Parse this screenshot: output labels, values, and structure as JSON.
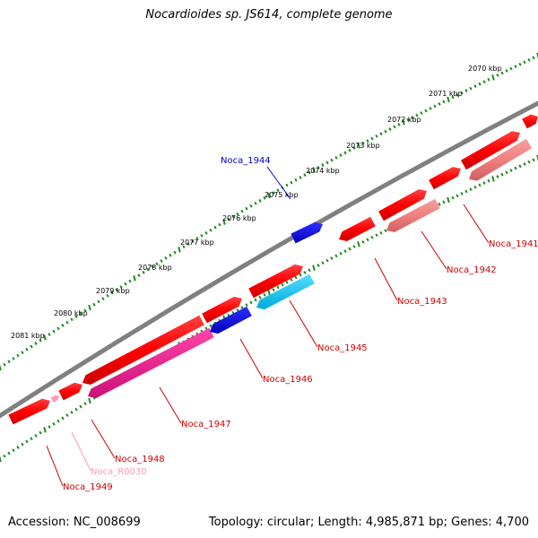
{
  "title": "Nocardioides sp. JS614, complete genome",
  "footer": {
    "accession": "Accession: NC_008699",
    "summary": "Topology: circular; Length: 4,985,871 bp; Genes: 4,700"
  },
  "colors": {
    "forward_gene": "#ff0000",
    "reverse_gene": "#f08080",
    "forward_rna": "#0000dd",
    "reverse_rna": "#00bbee",
    "pseudo": "#ee1188",
    "tick": "#228822",
    "backbone": "#808080"
  },
  "scale_labels": [
    "2070 kbp",
    "2071 kbp",
    "2072 kbp",
    "2073 kbp",
    "2074 kbp",
    "2075 kbp",
    "2076 kbp",
    "2077 kbp",
    "2078 kbp",
    "2079 kbp",
    "2080 kbp",
    "2081 kbp"
  ],
  "genes": [
    {
      "label": "Noca_1941",
      "color": "#cc0000"
    },
    {
      "label": "Noca_1942",
      "color": "#cc0000"
    },
    {
      "label": "Noca_1943",
      "color": "#cc0000"
    },
    {
      "label": "Noca_1944",
      "color": "#0000cc"
    },
    {
      "label": "Noca_1945",
      "color": "#cc0000"
    },
    {
      "label": "Noca_1946",
      "color": "#cc0000"
    },
    {
      "label": "Noca_1947",
      "color": "#cc0000"
    },
    {
      "label": "Noca_1948",
      "color": "#cc0000"
    },
    {
      "label": "Noca_R0030",
      "color": "#ff99bb"
    },
    {
      "label": "Noca_1949",
      "color": "#cc0000"
    }
  ]
}
